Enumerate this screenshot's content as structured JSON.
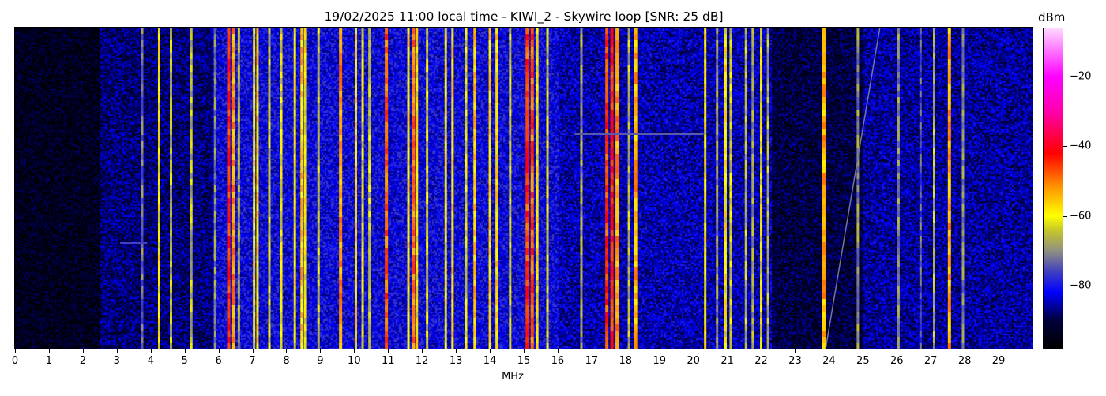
{
  "chart_data": {
    "type": "heatmap",
    "title": "19/02/2025 11:00 local time - KIWI_2 - Skywire loop [SNR: 25 dB]",
    "xlabel": "MHz",
    "ylabel": "",
    "xlim": [
      0,
      30
    ],
    "xticks": [
      0,
      1,
      2,
      3,
      4,
      5,
      6,
      7,
      8,
      9,
      10,
      11,
      12,
      13,
      14,
      15,
      16,
      17,
      18,
      19,
      20,
      21,
      22,
      23,
      24,
      25,
      26,
      27,
      28,
      29
    ],
    "colorbar": {
      "label": "dBm",
      "range": [
        -98,
        -6
      ],
      "ticks": [
        -20,
        -40,
        -60,
        -80
      ],
      "colormap": [
        {
          "value": -98,
          "color": "#000000"
        },
        {
          "value": -90,
          "color": "#00003c"
        },
        {
          "value": -82,
          "color": "#0000ff"
        },
        {
          "value": -76,
          "color": "#4040c0"
        },
        {
          "value": -70,
          "color": "#909080"
        },
        {
          "value": -64,
          "color": "#c8c828"
        },
        {
          "value": -60,
          "color": "#ffff00"
        },
        {
          "value": -52,
          "color": "#ff9900"
        },
        {
          "value": -42,
          "color": "#ff0000"
        },
        {
          "value": -30,
          "color": "#ff00aa"
        },
        {
          "value": -20,
          "color": "#ff00ff"
        },
        {
          "value": -6,
          "color": "#ffd8ff"
        }
      ]
    },
    "noise_floor": [
      {
        "from": 0,
        "to": 2.5,
        "dbm": -94
      },
      {
        "from": 2.5,
        "to": 5.8,
        "dbm": -88
      },
      {
        "from": 5.8,
        "to": 16.0,
        "dbm": -82
      },
      {
        "from": 16.0,
        "to": 22.3,
        "dbm": -85
      },
      {
        "from": 22.3,
        "to": 25.0,
        "dbm": -91
      },
      {
        "from": 25.0,
        "to": 30.0,
        "dbm": -86
      }
    ],
    "signals": [
      {
        "mhz": 3.75,
        "dbm": -72
      },
      {
        "mhz": 4.25,
        "dbm": -60
      },
      {
        "mhz": 4.6,
        "dbm": -66
      },
      {
        "mhz": 5.2,
        "dbm": -66
      },
      {
        "mhz": 5.9,
        "dbm": -70
      },
      {
        "mhz": 6.3,
        "dbm": -44
      },
      {
        "mhz": 6.45,
        "dbm": -52
      },
      {
        "mhz": 6.6,
        "dbm": -68
      },
      {
        "mhz": 7.05,
        "dbm": -60
      },
      {
        "mhz": 7.15,
        "dbm": -58
      },
      {
        "mhz": 7.5,
        "dbm": -64
      },
      {
        "mhz": 7.85,
        "dbm": -62
      },
      {
        "mhz": 8.25,
        "dbm": -60
      },
      {
        "mhz": 8.45,
        "dbm": -56
      },
      {
        "mhz": 8.55,
        "dbm": -60
      },
      {
        "mhz": 8.95,
        "dbm": -64
      },
      {
        "mhz": 9.6,
        "dbm": -52
      },
      {
        "mhz": 10.05,
        "dbm": -58
      },
      {
        "mhz": 10.25,
        "dbm": -62
      },
      {
        "mhz": 10.45,
        "dbm": -64
      },
      {
        "mhz": 10.95,
        "dbm": -48
      },
      {
        "mhz": 11.6,
        "dbm": -58
      },
      {
        "mhz": 11.75,
        "dbm": -50
      },
      {
        "mhz": 11.85,
        "dbm": -60
      },
      {
        "mhz": 12.15,
        "dbm": -64
      },
      {
        "mhz": 12.7,
        "dbm": -60
      },
      {
        "mhz": 12.9,
        "dbm": -58
      },
      {
        "mhz": 13.3,
        "dbm": -62
      },
      {
        "mhz": 13.55,
        "dbm": -56
      },
      {
        "mhz": 14.0,
        "dbm": -58
      },
      {
        "mhz": 14.2,
        "dbm": -58
      },
      {
        "mhz": 14.6,
        "dbm": -64
      },
      {
        "mhz": 15.1,
        "dbm": -46
      },
      {
        "mhz": 15.25,
        "dbm": -48
      },
      {
        "mhz": 15.4,
        "dbm": -60
      },
      {
        "mhz": 15.7,
        "dbm": -64
      },
      {
        "mhz": 16.7,
        "dbm": -68
      },
      {
        "mhz": 17.45,
        "dbm": -46
      },
      {
        "mhz": 17.6,
        "dbm": -44
      },
      {
        "mhz": 17.75,
        "dbm": -52
      },
      {
        "mhz": 18.1,
        "dbm": -66
      },
      {
        "mhz": 18.3,
        "dbm": -54
      },
      {
        "mhz": 20.35,
        "dbm": -60
      },
      {
        "mhz": 20.7,
        "dbm": -70
      },
      {
        "mhz": 20.95,
        "dbm": -60
      },
      {
        "mhz": 21.1,
        "dbm": -64
      },
      {
        "mhz": 21.55,
        "dbm": -66
      },
      {
        "mhz": 21.75,
        "dbm": -68
      },
      {
        "mhz": 22.0,
        "dbm": -62
      },
      {
        "mhz": 22.2,
        "dbm": -66
      },
      {
        "mhz": 23.85,
        "dbm": -54
      },
      {
        "mhz": 24.85,
        "dbm": -70
      },
      {
        "mhz": 26.05,
        "dbm": -70
      },
      {
        "mhz": 26.7,
        "dbm": -74
      },
      {
        "mhz": 27.1,
        "dbm": -66
      },
      {
        "mhz": 27.55,
        "dbm": -54
      },
      {
        "mhz": 27.95,
        "dbm": -70
      }
    ]
  }
}
